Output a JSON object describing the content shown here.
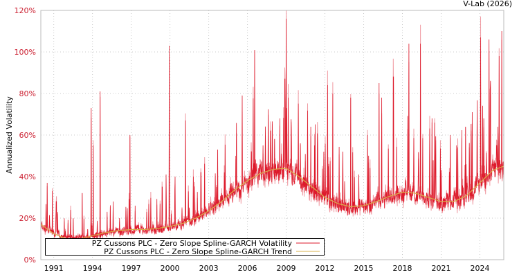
{
  "chart_data": {
    "type": "line",
    "title": "",
    "credit": "V-Lab (2026)",
    "xlabel": "",
    "ylabel": "Annualized Volatility",
    "xlim": [
      1990.0,
      2025.85
    ],
    "ylim": [
      0,
      120
    ],
    "grid": true,
    "legend_position": "bottom-left inside",
    "x_ticks": [
      "1991",
      "1994",
      "1997",
      "2000",
      "2003",
      "2006",
      "2009",
      "2012",
      "2015",
      "2018",
      "2021",
      "2024"
    ],
    "x_tick_values": [
      1991,
      1994,
      1997,
      2000,
      2003,
      2006,
      2009,
      2012,
      2015,
      2018,
      2021,
      2024
    ],
    "y_ticks": [
      "0%",
      "20%",
      "40%",
      "60%",
      "80%",
      "100%",
      "120%"
    ],
    "y_tick_values": [
      0,
      20,
      40,
      60,
      80,
      100,
      120
    ],
    "series": [
      {
        "name": "PZ Cussons PLC - Zero Slope Spline-GARCH Volatility",
        "color": "#dd1a2b",
        "spikes": [
          [
            1990.5,
            37
          ],
          [
            1990.9,
            33
          ],
          [
            1991.2,
            28
          ],
          [
            1992.3,
            24
          ],
          [
            1993.2,
            32
          ],
          [
            1993.9,
            73
          ],
          [
            1994.05,
            55
          ],
          [
            1994.6,
            81
          ],
          [
            1995.6,
            28
          ],
          [
            1996.1,
            20
          ],
          [
            1996.9,
            60
          ],
          [
            1997.3,
            26
          ],
          [
            1998.2,
            23
          ],
          [
            1999.4,
            35
          ],
          [
            1999.7,
            41
          ],
          [
            1999.95,
            103
          ],
          [
            2000.4,
            40
          ],
          [
            2001.2,
            67
          ],
          [
            2001.8,
            40
          ],
          [
            2002.4,
            42
          ],
          [
            2003.6,
            35
          ],
          [
            2004.2,
            42
          ],
          [
            2005.1,
            50
          ],
          [
            2005.6,
            79
          ],
          [
            2006.3,
            52
          ],
          [
            2006.55,
            101
          ],
          [
            2007.2,
            55
          ],
          [
            2007.8,
            62
          ],
          [
            2008.1,
            58
          ],
          [
            2008.5,
            68
          ],
          [
            2008.9,
            87
          ],
          [
            2009.0,
            116
          ],
          [
            2009.15,
            78
          ],
          [
            2009.4,
            62
          ],
          [
            2010.1,
            56
          ],
          [
            2010.9,
            64
          ],
          [
            2011.2,
            55
          ],
          [
            2012.2,
            84
          ],
          [
            2012.6,
            80
          ],
          [
            2013.4,
            52
          ],
          [
            2014.0,
            78
          ],
          [
            2015.3,
            60
          ],
          [
            2016.2,
            85
          ],
          [
            2016.4,
            78
          ],
          [
            2017.3,
            88
          ],
          [
            2018.5,
            104
          ],
          [
            2019.4,
            104
          ],
          [
            2020.3,
            68
          ],
          [
            2020.5,
            66
          ],
          [
            2021.7,
            60
          ],
          [
            2022.2,
            55
          ],
          [
            2023.4,
            71
          ],
          [
            2024.05,
            107
          ],
          [
            2024.3,
            68
          ],
          [
            2024.7,
            106
          ],
          [
            2025.3,
            55
          ],
          [
            2025.5,
            98
          ],
          [
            2025.7,
            110
          ]
        ]
      },
      {
        "name": "PZ Cussons PLC - Zero Slope Spline-GARCH Trend",
        "color": "#d9b04a",
        "x": [
          1990.0,
          1991.0,
          1992.0,
          1993.0,
          1994.0,
          1995.0,
          1996.0,
          1997.0,
          1998.0,
          1999.0,
          2000.0,
          2001.0,
          2002.0,
          2003.0,
          2004.0,
          2005.0,
          2006.0,
          2007.0,
          2008.0,
          2009.0,
          2010.0,
          2011.0,
          2012.0,
          2013.0,
          2014.0,
          2015.0,
          2016.0,
          2017.0,
          2018.0,
          2019.0,
          2020.0,
          2021.0,
          2022.0,
          2023.0,
          2024.0,
          2025.0,
          2025.85
        ],
        "values": [
          17,
          12.5,
          10,
          10,
          11.5,
          13,
          14,
          14.5,
          14.5,
          15,
          16,
          17.5,
          20,
          23.5,
          28,
          33.5,
          38,
          41.5,
          43.5,
          44,
          40,
          35,
          30,
          27,
          25.5,
          26,
          28,
          30.5,
          32.5,
          32,
          30,
          28,
          28,
          31,
          37,
          43,
          45
        ]
      }
    ]
  },
  "legend": {
    "items": [
      {
        "label": "PZ Cussons PLC - Zero Slope Spline-GARCH Volatility",
        "color": "#dd1a2b"
      },
      {
        "label": "PZ Cussons PLC - Zero Slope Spline-GARCH Trend",
        "color": "#d9b04a"
      }
    ]
  },
  "colors": {
    "axis": "#bbbbbb",
    "grid": "#c8c8c8",
    "ytick": "#cc2233"
  }
}
